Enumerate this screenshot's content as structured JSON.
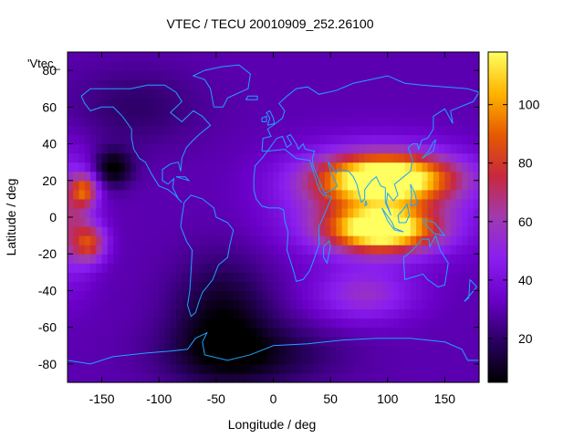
{
  "chart_data": {
    "type": "heatmap",
    "title": "VTEC / TECU 20010909_252.26100",
    "xlabel": "Longitude / deg",
    "ylabel": "Latitude / deg",
    "series_label": "'Vtec_",
    "xlim": [
      -180,
      180
    ],
    "ylim": [
      -90,
      90
    ],
    "x_ticks": [
      -150,
      -100,
      -50,
      0,
      50,
      100,
      150
    ],
    "y_ticks": [
      -80,
      -60,
      -40,
      -20,
      0,
      20,
      40,
      60,
      80
    ],
    "colorbar": {
      "min": 5,
      "max": 118,
      "ticks": [
        20,
        40,
        60,
        80,
        100
      ],
      "palette": [
        "#000000",
        "#2a0062",
        "#6a00c8",
        "#8a1ef0",
        "#a03ab0",
        "#c8283e",
        "#e65a00",
        "#ffb400",
        "#ffff60"
      ]
    },
    "grid": false,
    "background_level_tecu": 30,
    "features": [
      {
        "lon": 100,
        "lat": 22,
        "peak_tecu": 112,
        "sigma_lon": 42,
        "sigma_lat": 9
      },
      {
        "lon": 95,
        "lat": -7,
        "peak_tecu": 110,
        "sigma_lon": 32,
        "sigma_lat": 8
      },
      {
        "lon": 90,
        "lat": 8,
        "peak_tecu": 75,
        "sigma_lon": 50,
        "sigma_lat": 18
      },
      {
        "lon": 80,
        "lat": -42,
        "peak_tecu": 55,
        "sigma_lon": 30,
        "sigma_lat": 10
      },
      {
        "lon": -178,
        "lat": 0,
        "peak_tecu": 65,
        "sigma_lon": 15,
        "sigma_lat": 22
      },
      {
        "lon": -165,
        "lat": 15,
        "peak_tecu": 75,
        "sigma_lon": 8,
        "sigma_lat": 6
      },
      {
        "lon": -160,
        "lat": -14,
        "peak_tecu": 72,
        "sigma_lon": 10,
        "sigma_lat": 7
      }
    ],
    "depressions": [
      {
        "lon": -140,
        "lat": 27,
        "depth_tecu": 26,
        "sigma_lon": 12,
        "sigma_lat": 7
      },
      {
        "lon": -45,
        "lat": -55,
        "depth_tecu": 22,
        "sigma_lon": 30,
        "sigma_lat": 22
      },
      {
        "lon": -20,
        "lat": -75,
        "depth_tecu": 18,
        "sigma_lon": 50,
        "sigma_lat": 12
      },
      {
        "lon": -120,
        "lat": 60,
        "depth_tecu": 10,
        "sigma_lon": 40,
        "sigma_lat": 15
      }
    ]
  }
}
